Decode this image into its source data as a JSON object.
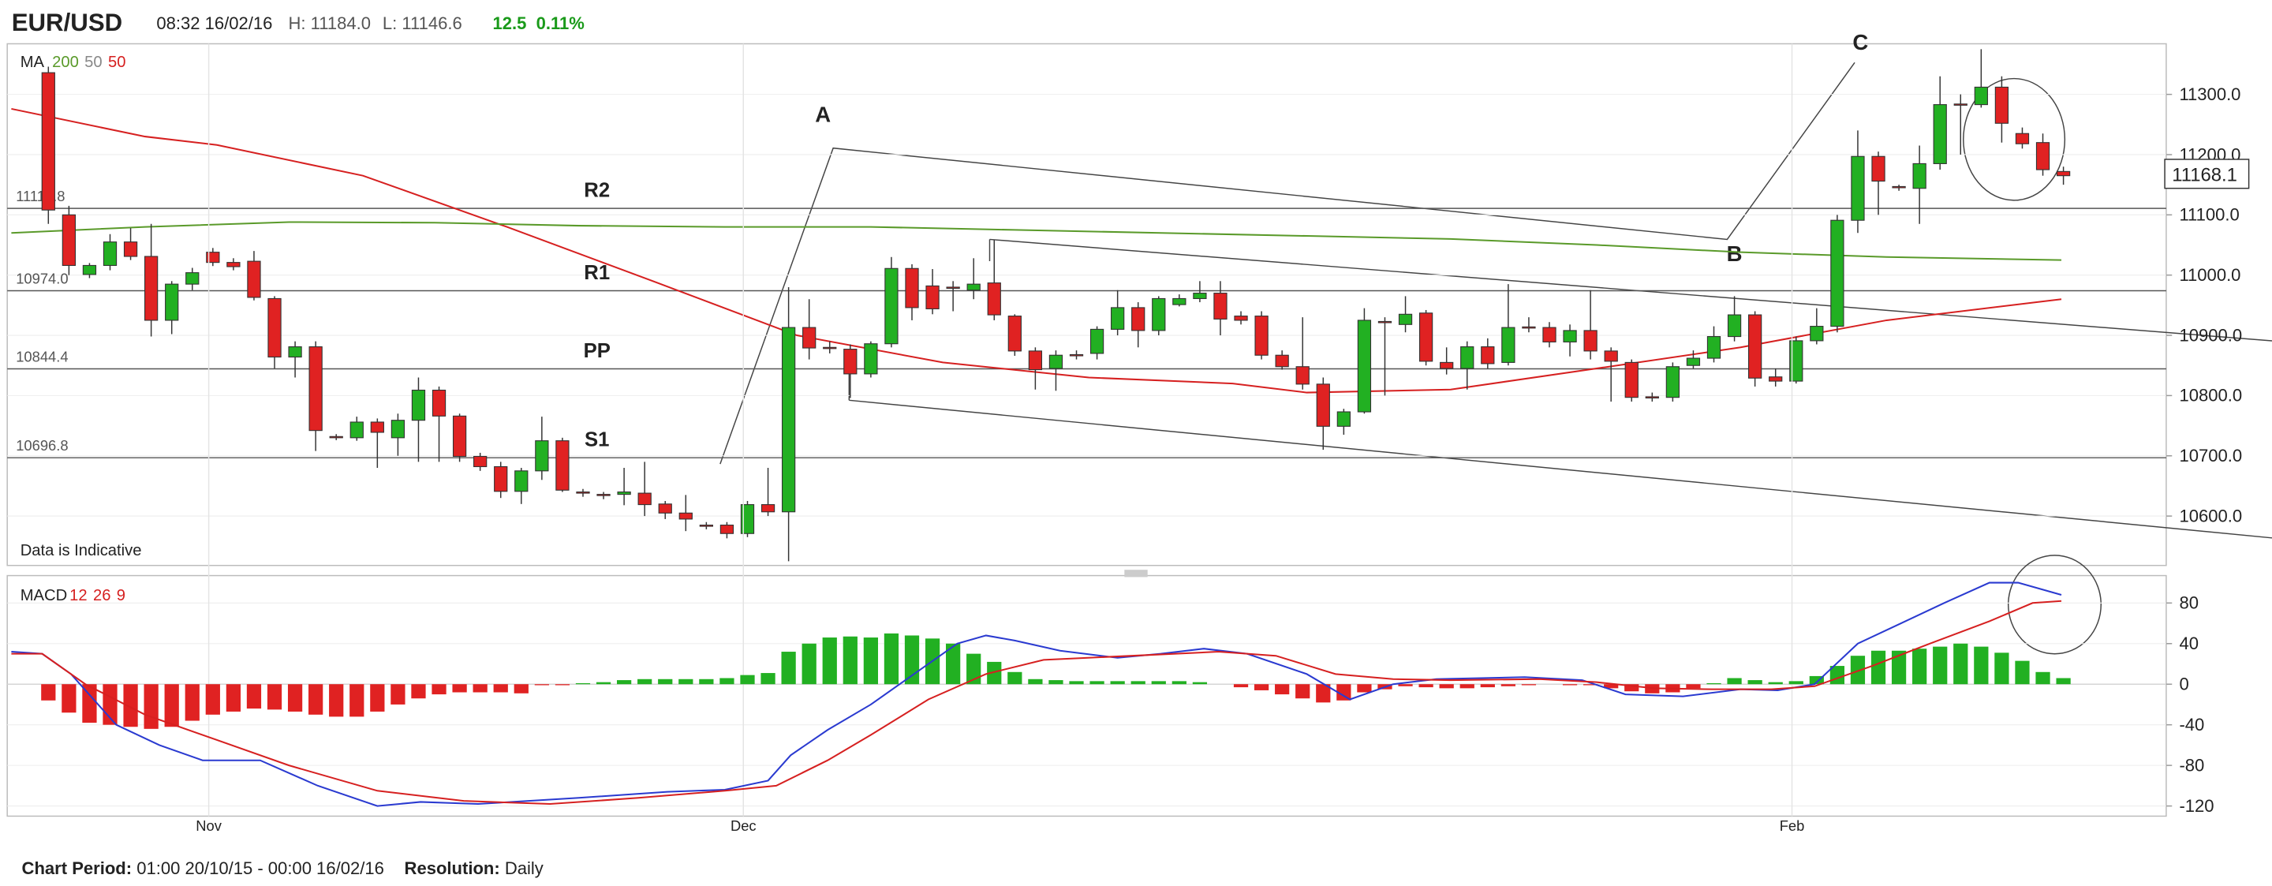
{
  "header": {
    "symbol": "EUR/USD",
    "time": "08:32 16/02/16",
    "high": "H: 11184.0",
    "low": "L: 11146.6",
    "change": "12.5",
    "change_pct": "0.11%"
  },
  "footer": {
    "period_label": "Chart Period:",
    "period": "01:00 20/10/15 - 00:00 16/02/16",
    "resolution_label": "Resolution:",
    "resolution": "Daily"
  },
  "chart_data": [
    {
      "type": "candlestick",
      "legend_title": "MA",
      "ma_legend": [
        "200",
        "50",
        "50"
      ],
      "ma_legend_colors": [
        "#5a9a2a",
        "#888888",
        "#d62020"
      ],
      "note": "Data is Indicative",
      "annotations": [
        "A",
        "B",
        "C"
      ],
      "xlim": [
        -2,
        103
      ],
      "ylim": [
        10518,
        11384
      ],
      "yticks": [
        {
          "value": 10600,
          "label": "10600.0"
        },
        {
          "value": 10700,
          "label": "10700.0"
        },
        {
          "value": 10800,
          "label": "10800.0"
        },
        {
          "value": 10900,
          "label": "10900.0"
        },
        {
          "value": 11000,
          "label": "11000.0"
        },
        {
          "value": 11100,
          "label": "11100.0"
        },
        {
          "value": 11200,
          "label": "11200.0"
        },
        {
          "value": 11300,
          "label": "11300.0"
        }
      ],
      "last": 11168.1,
      "levels": [
        {
          "name": "R2",
          "value": 11110.8
        },
        {
          "name": "R1",
          "value": 10974,
          "label": "10974.0"
        },
        {
          "name": "PP",
          "value": 10844.4
        },
        {
          "name": "S1",
          "value": 10696.8
        }
      ],
      "up_color": "#22b022",
      "down_color": "#e02222",
      "open": [
        11336,
        11100,
        11001,
        11016,
        11055,
        11031,
        10925,
        10985,
        11038,
        11021,
        11023,
        10961,
        10864,
        10881,
        10732,
        10730,
        10756,
        10730,
        10759,
        10809,
        10766,
        10699,
        10682,
        10641,
        10675,
        10725,
        10640,
        10636,
        10636,
        10638,
        10620,
        10605,
        10585,
        10585,
        10571,
        10619,
        10607,
        10913,
        10880,
        10877,
        10836,
        10886,
        11011,
        10982,
        10980,
        10975,
        10987,
        10932,
        10874,
        10845,
        10868,
        10870,
        10910,
        10946,
        10908,
        10951,
        10961,
        10970,
        10932,
        10932,
        10867,
        10848,
        10819,
        10749,
        10773,
        10923,
        10918,
        10937,
        10855,
        10845,
        10881,
        10855,
        10914,
        10913,
        10889,
        10908,
        10874,
        10855,
        10798,
        10797,
        10850,
        10862,
        10898,
        10934,
        10831,
        10824,
        10891,
        10915,
        11091,
        11197,
        11147,
        11144,
        11185,
        11284,
        11283,
        11312,
        11235,
        11220,
        11172
      ],
      "high": [
        11346,
        11115,
        11020,
        11068,
        11078,
        11085,
        10990,
        11012,
        11045,
        11028,
        11040,
        10965,
        10890,
        10890,
        10736,
        10765,
        10762,
        10770,
        10830,
        10815,
        10770,
        10705,
        10690,
        10680,
        10765,
        10730,
        10645,
        10640,
        10680,
        10690,
        10625,
        10635,
        10590,
        10590,
        10625,
        10680,
        10980,
        10960,
        10890,
        10885,
        10890,
        11030,
        11018,
        11010,
        10990,
        11028,
        11058,
        10935,
        10880,
        10875,
        10875,
        10915,
        10975,
        10955,
        10965,
        10968,
        10990,
        10990,
        10940,
        10940,
        10875,
        10930,
        10830,
        10778,
        10945,
        10930,
        10965,
        10942,
        10880,
        10890,
        10895,
        10985,
        10930,
        10922,
        10918,
        10975,
        10880,
        10860,
        10805,
        10855,
        10875,
        10915,
        10965,
        10940,
        10845,
        10898,
        10945,
        11100,
        11240,
        11205,
        11150,
        11215,
        11330,
        11300,
        11375,
        11330,
        11245,
        11235,
        11180
      ],
      "low": [
        11085,
        11000,
        10995,
        11008,
        11025,
        10898,
        10902,
        10975,
        11015,
        11008,
        10958,
        10845,
        10830,
        10708,
        10726,
        10725,
        10680,
        10700,
        10690,
        10690,
        10690,
        10675,
        10630,
        10620,
        10660,
        10640,
        10632,
        10628,
        10618,
        10600,
        10595,
        10575,
        10578,
        10563,
        10565,
        10600,
        10525,
        10860,
        10870,
        10796,
        10830,
        10880,
        10925,
        10935,
        10940,
        10960,
        10925,
        10866,
        10810,
        10808,
        10860,
        10860,
        10900,
        10880,
        10900,
        10948,
        10955,
        10900,
        10918,
        10860,
        10843,
        10810,
        10710,
        10735,
        10770,
        10800,
        10905,
        10850,
        10835,
        10810,
        10845,
        10850,
        10905,
        10880,
        10865,
        10860,
        10790,
        10790,
        10790,
        10790,
        10845,
        10855,
        10890,
        10815,
        10815,
        10820,
        10885,
        10905,
        11070,
        11100,
        11140,
        11085,
        11175,
        11200,
        11278,
        11220,
        11210,
        11165,
        11150
      ],
      "close": [
        11108,
        11016,
        11016,
        11055,
        11031,
        10925,
        10985,
        11004,
        11021,
        11014,
        10963,
        10864,
        10881,
        10742,
        10730,
        10756,
        10739,
        10759,
        10809,
        10766,
        10699,
        10682,
        10641,
        10675,
        10725,
        10643,
        10638,
        10634,
        10640,
        10619,
        10605,
        10595,
        10583,
        10571,
        10619,
        10607,
        10913,
        10879,
        10878,
        10836,
        10886,
        11011,
        10946,
        10944,
        10978,
        10985,
        10934,
        10874,
        10843,
        10867,
        10866,
        10910,
        10946,
        10908,
        10961,
        10961,
        10970,
        10927,
        10925,
        10867,
        10848,
        10819,
        10749,
        10773,
        10925,
        10921,
        10935,
        10857,
        10845,
        10881,
        10853,
        10913,
        10912,
        10889,
        10908,
        10874,
        10857,
        10797,
        10796,
        10848,
        10862,
        10898,
        10934,
        10829,
        10824,
        10891,
        10915,
        11091,
        11197,
        11156,
        11145,
        11185,
        11283,
        11282,
        11312,
        11252,
        11218,
        11175,
        11165
      ],
      "ma_lines": [
        {
          "color": "#d62020",
          "x": [
            -1.8,
            4.7,
            8.2,
            15.3,
            22.3,
            29.4,
            36.4,
            43.5,
            50.6,
            57.6,
            61.2,
            68.2,
            75.3,
            82.3,
            89.4,
            97.9
          ],
          "values": [
            11276,
            11230,
            11216,
            11165,
            11080,
            10990,
            10900,
            10855,
            10830,
            10820,
            10805,
            10810,
            10845,
            10880,
            10925,
            10960
          ]
        },
        {
          "color": "#5a9a2a",
          "x": [
            -1.8,
            4.7,
            11.7,
            18.8,
            25.8,
            32.9,
            40.0,
            47.0,
            54.1,
            61.2,
            68.2,
            75.3,
            82.3,
            89.4,
            97.9
          ],
          "values": [
            11070,
            11080,
            11088,
            11087,
            11082,
            11080,
            11080,
            11075,
            11070,
            11065,
            11060,
            11050,
            11038,
            11030,
            11025
          ]
        }
      ]
    },
    {
      "type": "macd",
      "legend_title": "MACD",
      "macd_legend": [
        "12",
        "26",
        "9"
      ],
      "xlim": [
        -2,
        103
      ],
      "xticks": [
        {
          "value": 7.8,
          "label": "Nov"
        },
        {
          "value": 33.8,
          "label": "Dec"
        },
        {
          "value": 84.8,
          "label": "Feb"
        }
      ],
      "ylim": [
        -130,
        107
      ],
      "yticks": [
        -120,
        -80,
        -40,
        0,
        40,
        80
      ],
      "up_color": "#22b022",
      "down_color": "#e02222",
      "histogram": [
        -16,
        -28,
        -38,
        -40,
        -42,
        -44,
        -42,
        -36,
        -30,
        -27,
        -24,
        -25,
        -27,
        -30,
        -32,
        -32,
        -27,
        -20,
        -14,
        -10,
        -8,
        -8,
        -8,
        -9,
        -1,
        -1,
        1,
        2,
        4,
        5,
        5,
        5,
        5,
        6,
        9,
        11,
        32,
        40,
        46,
        47,
        46,
        50,
        48,
        45,
        40,
        30,
        22,
        12,
        5,
        4,
        3,
        3,
        3,
        3,
        3,
        3,
        2,
        0,
        -3,
        -6,
        -10,
        -14,
        -18,
        -16,
        -8,
        -5,
        -2,
        -3,
        -4,
        -4,
        -3,
        -2,
        -1,
        0,
        -1,
        -1,
        -4,
        -7,
        -9,
        -8,
        -4,
        1,
        6,
        4,
        2,
        3,
        8,
        18,
        28,
        33,
        33,
        35,
        37,
        40,
        37,
        31,
        23,
        12,
        6
      ],
      "lines": [
        {
          "color": "#2a3ad0",
          "x": [
            -1.8,
            -0.3,
            1.1,
            3.3,
            5.4,
            7.5,
            10.3,
            13.1,
            16.0,
            18.1,
            20.9,
            25.8,
            30.1,
            32.9,
            35.0,
            36.1,
            37.9,
            40.0,
            42.1,
            44.2,
            45.6,
            47.0,
            49.2,
            52.0,
            54.1,
            56.2,
            58.3,
            61.2,
            63.3,
            65.4,
            67.5,
            71.8,
            74.6,
            76.7,
            79.5,
            82.3,
            84.1,
            85.9,
            88.0,
            90.1,
            92.2,
            94.4,
            95.8,
            97.9
          ],
          "values": [
            32,
            30,
            10,
            -40,
            -60,
            -75,
            -75,
            -100,
            -120,
            -116,
            -118,
            -112,
            -106,
            -104,
            -95,
            -70,
            -45,
            -20,
            10,
            40,
            48,
            43,
            33,
            26,
            30,
            35,
            30,
            10,
            -15,
            0,
            5,
            7,
            4,
            -10,
            -12,
            -5,
            -6,
            0,
            40,
            60,
            80,
            100,
            100,
            88
          ]
        },
        {
          "color": "#d62020",
          "x": [
            -1.8,
            -0.3,
            1.8,
            4.7,
            8.2,
            11.7,
            16.0,
            20.2,
            24.4,
            28.7,
            32.9,
            35.4,
            37.9,
            40.0,
            42.8,
            45.6,
            48.4,
            52.7,
            56.9,
            59.7,
            62.6,
            65.4,
            68.2,
            72.5,
            75.3,
            78.1,
            80.9,
            83.8,
            85.9,
            88.7,
            91.5,
            94.4,
            96.5,
            97.9
          ],
          "values": [
            30,
            30,
            0,
            -30,
            -55,
            -80,
            -105,
            -115,
            -118,
            -112,
            -105,
            -100,
            -75,
            -50,
            -15,
            10,
            24,
            28,
            32,
            28,
            10,
            5,
            4,
            5,
            2,
            -4,
            -5,
            -5,
            -2,
            18,
            40,
            62,
            80,
            82
          ]
        }
      ]
    }
  ]
}
